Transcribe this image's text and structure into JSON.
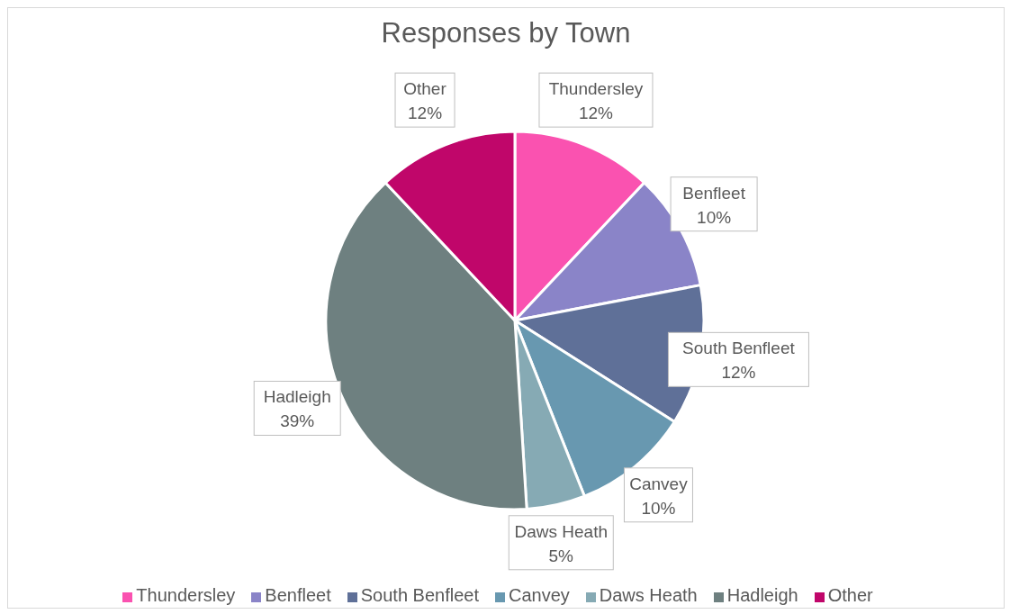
{
  "chart_data": {
    "type": "pie",
    "title": "Responses by Town",
    "categories": [
      "Thundersley",
      "Benfleet",
      "South Benfleet",
      "Canvey",
      "Daws Heath",
      "Hadleigh",
      "Other"
    ],
    "values": [
      12,
      10,
      12,
      10,
      5,
      39,
      12
    ],
    "value_labels": [
      "12%",
      "10%",
      "12%",
      "10%",
      "5%",
      "39%",
      "12%"
    ],
    "colors": [
      "#fa52b0",
      "#8a84c8",
      "#5f7098",
      "#6898b0",
      "#86aab4",
      "#6e8080",
      "#c0066a"
    ],
    "legend": "bottom"
  }
}
